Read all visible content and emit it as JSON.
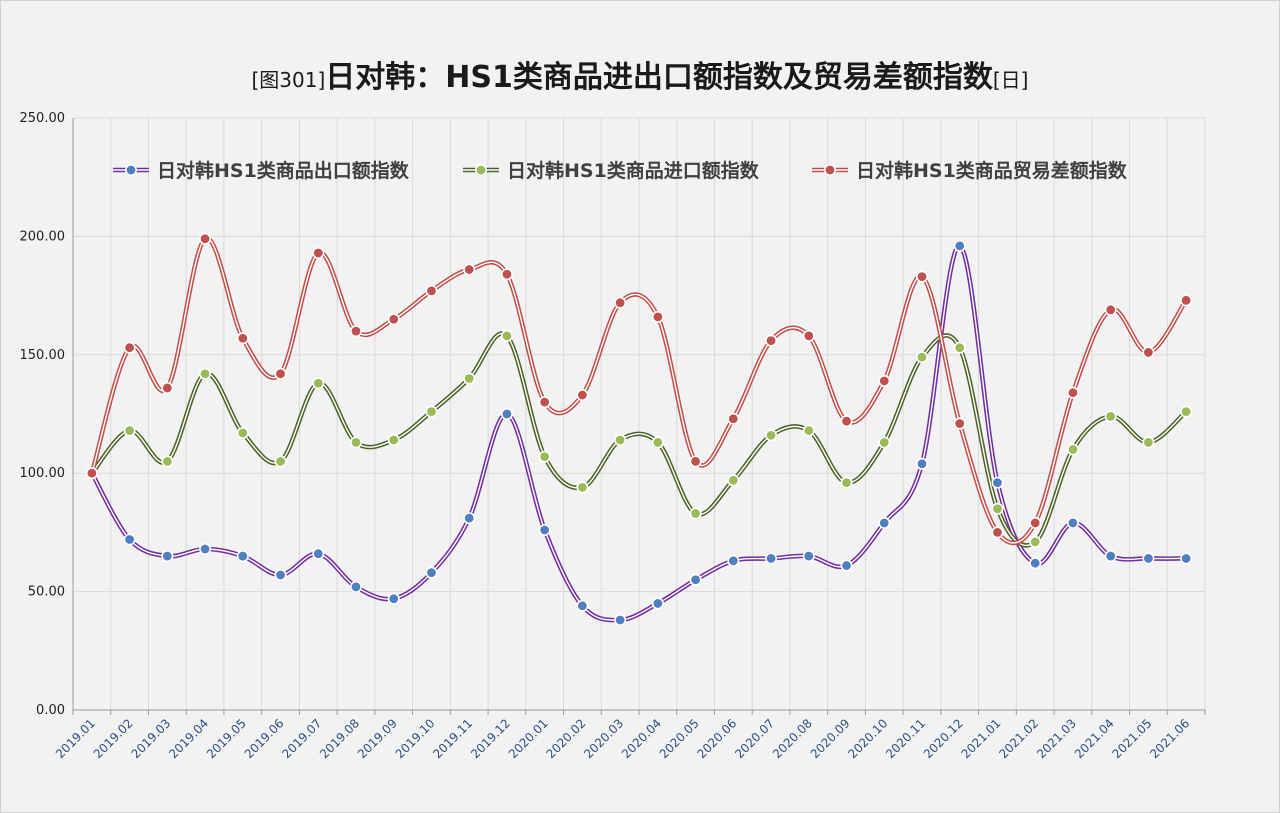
{
  "title": {
    "prefix": "[图301]",
    "main": "日对韩：HS1类商品进出口额指数及贸易差额指数",
    "suffix": "[日]"
  },
  "chart_data": {
    "type": "line",
    "ylim": [
      0,
      250
    ],
    "yticks": [
      "250.00",
      "200.00",
      "150.00",
      "100.00",
      "50.00",
      "0.00"
    ],
    "ytick_values": [
      250,
      200,
      150,
      100,
      50,
      0
    ],
    "grid": true,
    "legend_position": "top",
    "categories": [
      "2019.01",
      "2019.02",
      "2019.03",
      "2019.04",
      "2019.05",
      "2019.06",
      "2019.07",
      "2019.08",
      "2019.09",
      "2019.10",
      "2019.11",
      "2019.12",
      "2020.01",
      "2020.02",
      "2020.03",
      "2020.04",
      "2020.05",
      "2020.06",
      "2020.07",
      "2020.08",
      "2020.09",
      "2020.10",
      "2020.11",
      "2020.12",
      "2021.01",
      "2021.02",
      "2021.03",
      "2021.04",
      "2021.05",
      "2021.06"
    ],
    "series": [
      {
        "name": "日对韩HS1类商品出口额指数",
        "color": "#7030a0",
        "marker": "#4f7fc0",
        "values": [
          100,
          72,
          65,
          68,
          65,
          57,
          66,
          52,
          47,
          58,
          81,
          125,
          76,
          44,
          38,
          45,
          55,
          63,
          64,
          65,
          61,
          79,
          104,
          196,
          96,
          62,
          79,
          65,
          64,
          64
        ]
      },
      {
        "name": "日对韩HS1类商品进口额指数",
        "color": "#4f6228",
        "marker": "#9bbb59",
        "values": [
          100,
          118,
          105,
          142,
          117,
          105,
          138,
          113,
          114,
          126,
          140,
          158,
          107,
          94,
          114,
          113,
          83,
          97,
          116,
          118,
          96,
          113,
          149,
          153,
          85,
          71,
          110,
          124,
          113,
          126
        ]
      },
      {
        "name": "日对韩HS1类商品贸易差额指数",
        "color": "#c0504d",
        "marker": "#c0504d",
        "values": [
          100,
          153,
          136,
          199,
          157,
          142,
          193,
          160,
          165,
          177,
          186,
          184,
          130,
          133,
          172,
          166,
          105,
          123,
          156,
          158,
          122,
          139,
          183,
          121,
          75,
          79,
          134,
          169,
          151,
          173
        ]
      }
    ]
  }
}
